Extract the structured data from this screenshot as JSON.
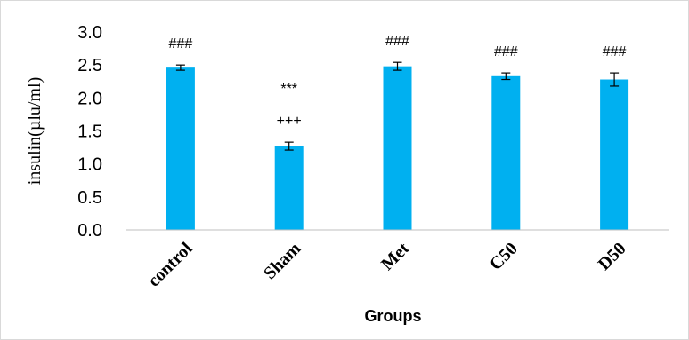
{
  "chart_data": {
    "type": "bar",
    "title": "",
    "xlabel": "Groups",
    "ylabel": "insulin(µlu/ml)",
    "categories": [
      "control",
      "Sham",
      "Met",
      "C50",
      "D50"
    ],
    "values": [
      2.46,
      1.27,
      2.48,
      2.33,
      2.28
    ],
    "errors": [
      0.04,
      0.06,
      0.06,
      0.05,
      0.1
    ],
    "annotations": [
      [
        "###"
      ],
      [
        "+++",
        "***"
      ],
      [
        "###"
      ],
      [
        "###"
      ],
      [
        "###"
      ]
    ],
    "ylim": [
      0,
      3.0
    ],
    "yticks": [
      "0.0",
      "0.5",
      "1.0",
      "1.5",
      "2.0",
      "2.5",
      "3.0"
    ],
    "grid": false,
    "bar_color": "#00B0F0"
  }
}
